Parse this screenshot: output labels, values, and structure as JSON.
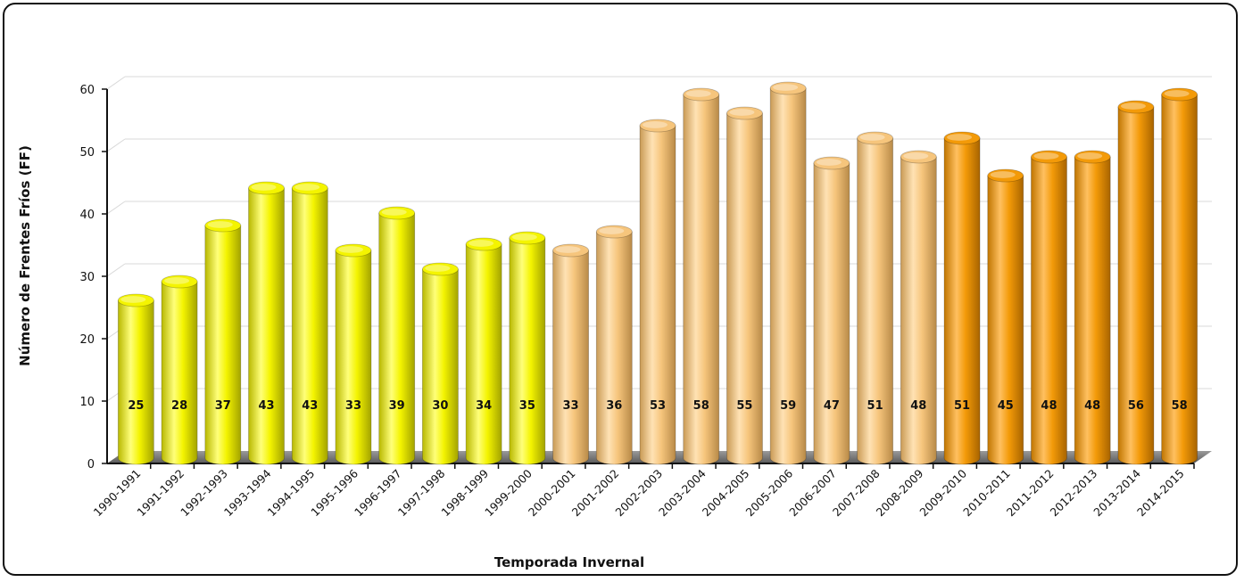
{
  "chart_data": {
    "type": "bar",
    "title": "",
    "xlabel": "Temporada Invernal",
    "ylabel": "Número de Frentes Fríos (FF)",
    "ylim": [
      0,
      60
    ],
    "yticks": [
      0,
      10,
      20,
      30,
      40,
      50,
      60
    ],
    "grid": true,
    "style": "3d-cylinder",
    "categories": [
      "1990-1991",
      "1991-1992",
      "1992-1993",
      "1993-1994",
      "1994-1995",
      "1995-1996",
      "1996-1997",
      "1997-1998",
      "1998-1999",
      "1999-2000",
      "2000-2001",
      "2001-2002",
      "2002-2003",
      "2003-2004",
      "2004-2005",
      "2005-2006",
      "2006-2007",
      "2007-2008",
      "2008-2009",
      "2009-2010",
      "2010-2011",
      "2011-2012",
      "2012-2013",
      "2013-2014",
      "2014-2015"
    ],
    "values": [
      25,
      28,
      37,
      43,
      43,
      33,
      39,
      30,
      34,
      35,
      33,
      36,
      53,
      58,
      55,
      59,
      47,
      51,
      48,
      51,
      45,
      48,
      48,
      56,
      58
    ],
    "groups": [
      {
        "from": 0,
        "to": 9,
        "color": "#f4f400"
      },
      {
        "from": 10,
        "to": 18,
        "color": "#f6c57c"
      },
      {
        "from": 19,
        "to": 24,
        "color": "#f39a08"
      }
    ]
  }
}
